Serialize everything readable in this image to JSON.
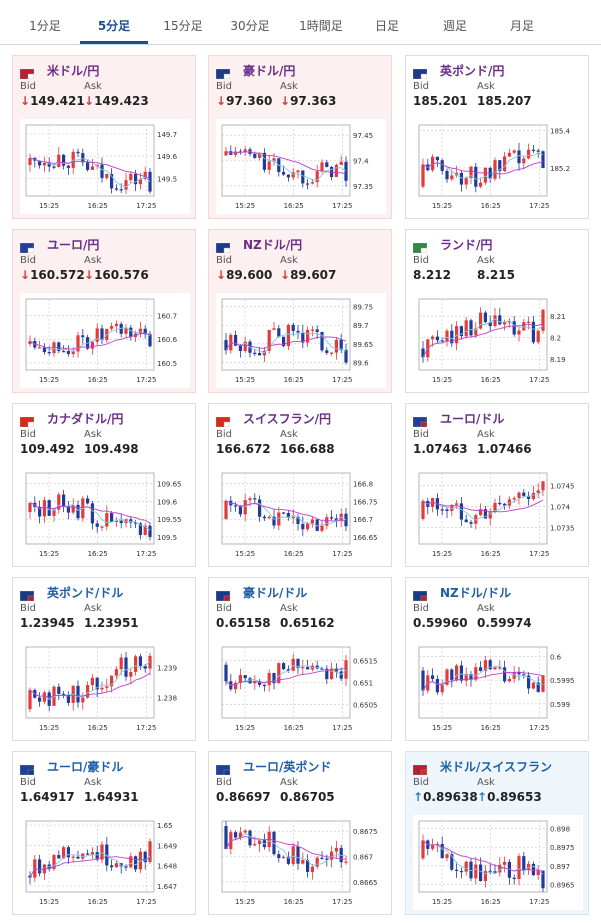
{
  "tabs": [
    {
      "label": "1分足",
      "active": false
    },
    {
      "label": "5分足",
      "active": true
    },
    {
      "label": "15分足",
      "active": false
    },
    {
      "label": "30分足",
      "active": false
    },
    {
      "label": "1時間足",
      "active": false
    },
    {
      "label": "日足",
      "active": false
    },
    {
      "label": "週足",
      "active": false
    },
    {
      "label": "月足",
      "active": false
    }
  ],
  "labels": {
    "bid": "Bid",
    "ask": "Ask"
  },
  "x_ticks": [
    "15:25",
    "16:25",
    "17:25"
  ],
  "colors": {
    "up_candle": "#e23b3b",
    "down_candle": "#1f3a9a",
    "ma_short": "#7ec8e3",
    "ma_long": "#c03fd0",
    "grid": "#c8c8c8"
  },
  "cards": [
    {
      "pair": "米ドル/円",
      "flag": "us-jp",
      "trend": "down",
      "bid": "149.421",
      "ask": "149.423",
      "yticks": [
        "149.7",
        "149.6",
        "149.5"
      ],
      "ylim": [
        149.42,
        149.74
      ],
      "chart_data": {
        "type": "candlestick",
        "open": 149.56,
        "close": 149.44,
        "high": 149.72,
        "low": 149.43
      }
    },
    {
      "pair": "豪ドル/円",
      "flag": "au-jp",
      "trend": "down",
      "bid": "97.360",
      "ask": "97.363",
      "yticks": [
        "97.45",
        "97.4",
        "97.35"
      ],
      "ylim": [
        97.33,
        97.47
      ],
      "chart_data": {
        "type": "candlestick",
        "open": 97.41,
        "close": 97.36,
        "high": 97.45,
        "low": 97.34
      }
    },
    {
      "pair": "英ポンド/円",
      "flag": "gb-jp",
      "trend": "flat",
      "bid": "185.201",
      "ask": "185.207",
      "yticks": [
        "185.4",
        "185.2"
      ],
      "ylim": [
        185.05,
        185.43
      ],
      "chart_data": {
        "type": "candlestick",
        "open": 185.1,
        "close": 185.2,
        "high": 185.42,
        "low": 185.07
      }
    },
    {
      "pair": "ユーロ/円",
      "flag": "eu-jp",
      "trend": "down",
      "bid": "160.572",
      "ask": "160.576",
      "yticks": [
        "160.7",
        "160.6",
        "160.5"
      ],
      "ylim": [
        160.47,
        160.77
      ],
      "chart_data": {
        "type": "candlestick",
        "open": 160.58,
        "close": 160.57,
        "high": 160.74,
        "low": 160.5
      }
    },
    {
      "pair": "NZドル/円",
      "flag": "nz-jp",
      "trend": "down",
      "bid": "89.600",
      "ask": "89.607",
      "yticks": [
        "89.75",
        "89.7",
        "89.65",
        "89.6"
      ],
      "ylim": [
        89.58,
        89.77
      ],
      "chart_data": {
        "type": "candlestick",
        "open": 89.66,
        "close": 89.6,
        "high": 89.76,
        "low": 89.59
      }
    },
    {
      "pair": "ランド/円",
      "flag": "za-jp",
      "trend": "flat",
      "bid": "8.212",
      "ask": "8.215",
      "yticks": [
        "8.21",
        "8.2",
        "8.19"
      ],
      "ylim": [
        8.185,
        8.218
      ],
      "chart_data": {
        "type": "candlestick",
        "open": 8.195,
        "close": 8.213,
        "high": 8.217,
        "low": 8.188
      }
    },
    {
      "pair": "カナダドル/円",
      "flag": "ca-jp",
      "trend": "flat",
      "bid": "109.492",
      "ask": "109.498",
      "yticks": [
        "109.65",
        "109.6",
        "109.55",
        "109.5"
      ],
      "ylim": [
        109.48,
        109.68
      ],
      "chart_data": {
        "type": "candlestick",
        "open": 109.57,
        "close": 109.5,
        "high": 109.67,
        "low": 109.49
      }
    },
    {
      "pair": "スイスフラン/円",
      "flag": "ch-jp",
      "trend": "flat",
      "bid": "166.672",
      "ask": "166.688",
      "yticks": [
        "166.8",
        "166.75",
        "166.7",
        "166.65"
      ],
      "ylim": [
        166.63,
        166.83
      ],
      "chart_data": {
        "type": "candlestick",
        "open": 166.7,
        "close": 166.68,
        "high": 166.82,
        "low": 166.64
      }
    },
    {
      "pair": "ユーロ/ドル",
      "flag": "eu-us",
      "trend": "flat",
      "bid": "1.07463",
      "ask": "1.07466",
      "yticks": [
        "1.0745",
        "1.074",
        "1.0735"
      ],
      "ylim": [
        1.0731,
        1.0748
      ],
      "chart_data": {
        "type": "candlestick",
        "open": 1.0737,
        "close": 1.0746,
        "high": 1.0747,
        "low": 1.0732
      }
    },
    {
      "pair": "英ポンド/ドル",
      "flag": "gb-us",
      "trend": "flat",
      "bid": "1.23945",
      "ask": "1.23951",
      "yticks": [
        "1.239",
        "1.238"
      ],
      "ylim": [
        1.2373,
        1.2397
      ],
      "chart_data": {
        "type": "candlestick",
        "open": 1.2376,
        "close": 1.2394,
        "high": 1.2396,
        "low": 1.2374
      }
    },
    {
      "pair": "豪ドル/ドル",
      "flag": "au-us",
      "trend": "flat",
      "bid": "0.65158",
      "ask": "0.65162",
      "yticks": [
        "0.6515",
        "0.651",
        "0.6505"
      ],
      "ylim": [
        0.6502,
        0.6518
      ],
      "chart_data": {
        "type": "candlestick",
        "open": 0.6514,
        "close": 0.6515,
        "high": 0.6517,
        "low": 0.6503
      }
    },
    {
      "pair": "NZドル/ドル",
      "flag": "nz-us",
      "trend": "flat",
      "bid": "0.59960",
      "ask": "0.59974",
      "yticks": [
        "0.6",
        "0.5995",
        "0.599"
      ],
      "ylim": [
        0.5987,
        0.6002
      ],
      "chart_data": {
        "type": "candlestick",
        "open": 0.5997,
        "close": 0.5996,
        "high": 0.6001,
        "low": 0.5988
      }
    },
    {
      "pair": "ユーロ/豪ドル",
      "flag": "eu-au",
      "trend": "flat",
      "bid": "1.64917",
      "ask": "1.64931",
      "yticks": [
        "1.65",
        "1.649",
        "1.648",
        "1.647"
      ],
      "ylim": [
        1.6467,
        1.6502
      ],
      "chart_data": {
        "type": "candlestick",
        "open": 1.6475,
        "close": 1.6492,
        "high": 1.6501,
        "low": 1.6469
      }
    },
    {
      "pair": "ユーロ/英ポンド",
      "flag": "eu-gb",
      "trend": "flat",
      "bid": "0.86697",
      "ask": "0.86705",
      "yticks": [
        "0.8675",
        "0.867",
        "0.8665"
      ],
      "ylim": [
        0.8663,
        0.8677
      ],
      "chart_data": {
        "type": "candlestick",
        "open": 0.8676,
        "close": 0.8669,
        "high": 0.8677,
        "low": 0.8664
      }
    },
    {
      "pair": "米ドル/スイスフラン",
      "flag": "us-ch",
      "trend": "up",
      "bid": "0.89638",
      "ask": "0.89653",
      "yticks": [
        "0.898",
        "0.8975",
        "0.897",
        "0.8965"
      ],
      "ylim": [
        0.8963,
        0.8982
      ],
      "chart_data": {
        "type": "candlestick",
        "open": 0.8972,
        "close": 0.8964,
        "high": 0.8981,
        "low": 0.8963
      }
    }
  ]
}
